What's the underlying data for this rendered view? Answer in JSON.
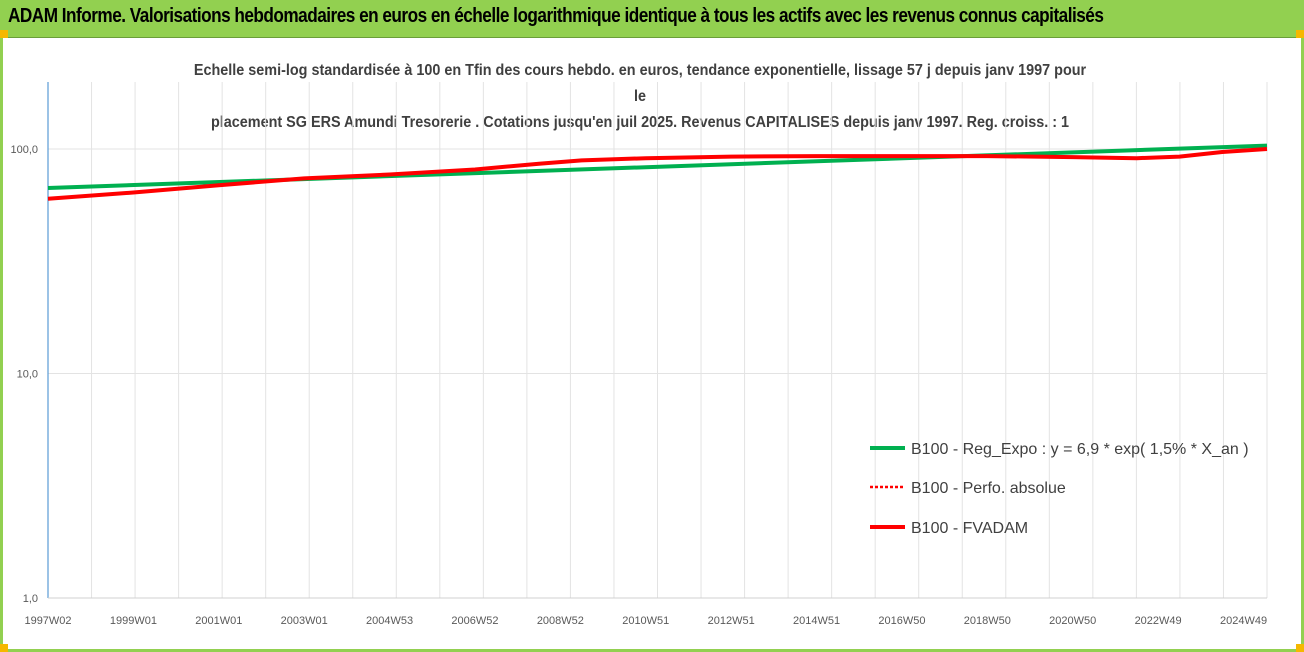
{
  "header": {
    "title": "ADAM Informe. Valorisations hebdomadaires en euros en échelle logarithmique identique à tous les actifs avec les revenus connus capitalisés"
  },
  "chart_data": {
    "type": "line",
    "title_lines": [
      "Echelle semi-log standardisée à 100 en Tfin des cours hebdo. en euros, tendance exponentielle, lissage 57 j depuis janv 1997 pour le",
      "placement SG ERS Amundi Tresorerie . Cotations jusqu'en juil 2025. Revenus CAPITALISES depuis janv 1997. Reg. croiss. : 1"
    ],
    "yscale": "log",
    "ylim": [
      1,
      100
    ],
    "y_ticks": [
      {
        "value": 1,
        "label": "1,0"
      },
      {
        "value": 10,
        "label": "10,0"
      },
      {
        "value": 100,
        "label": "100,0"
      }
    ],
    "x_range": [
      1997.0,
      2025.55
    ],
    "x_ticks": [
      {
        "x": 1997.0,
        "label": "1997W02"
      },
      {
        "x": 1999.0,
        "label": "1999W01"
      },
      {
        "x": 2001.0,
        "label": "2001W01"
      },
      {
        "x": 2003.0,
        "label": "2003W01"
      },
      {
        "x": 2005.0,
        "label": "2004W53"
      },
      {
        "x": 2007.0,
        "label": "2006W52"
      },
      {
        "x": 2009.0,
        "label": "2008W52"
      },
      {
        "x": 2011.0,
        "label": "2010W51"
      },
      {
        "x": 2013.0,
        "label": "2012W51"
      },
      {
        "x": 2015.0,
        "label": "2014W51"
      },
      {
        "x": 2017.0,
        "label": "2016W50"
      },
      {
        "x": 2019.0,
        "label": "2018W50"
      },
      {
        "x": 2021.0,
        "label": "2020W50"
      },
      {
        "x": 2023.0,
        "label": "2022W49"
      },
      {
        "x": 2025.0,
        "label": "2024W49"
      }
    ],
    "grid": true,
    "legend_position": "bottom-right",
    "series": [
      {
        "name": "B100 - Reg_Expo : y = 6,9 * exp( 1,5% *  X_an )",
        "color": "#00b050",
        "style": "solid",
        "x": [
          1997.0,
          2025.55
        ],
        "y": [
          67.0,
          103.5
        ]
      },
      {
        "name": "B100 - Perfo. absolue",
        "color": "#ff0000",
        "style": "dotted",
        "x": [
          1997.0,
          1999.0,
          2001.0,
          2003.0,
          2005.0,
          2007.0,
          2008.5,
          2009.5,
          2011.0,
          2013.0,
          2015.0,
          2017.0,
          2019.0,
          2021.0,
          2022.5,
          2023.5,
          2024.5,
          2025.55
        ],
        "y": [
          60.0,
          64.0,
          69.0,
          74.0,
          77.0,
          81.0,
          86.0,
          89.0,
          91.0,
          92.5,
          93.0,
          93.0,
          93.0,
          92.0,
          91.0,
          92.5,
          97.0,
          100.0
        ]
      },
      {
        "name": "B100 - FVADAM",
        "color": "#ff0000",
        "style": "solid",
        "x": [
          1997.0,
          1999.0,
          2001.0,
          2003.0,
          2005.0,
          2007.0,
          2008.5,
          2009.5,
          2011.0,
          2013.0,
          2015.0,
          2017.0,
          2019.0,
          2021.0,
          2022.5,
          2023.5,
          2024.5,
          2025.55
        ],
        "y": [
          60.0,
          64.0,
          69.0,
          74.0,
          77.0,
          81.0,
          86.0,
          89.0,
          91.0,
          92.5,
          93.0,
          93.0,
          93.0,
          92.0,
          91.0,
          92.5,
          97.0,
          100.0
        ]
      }
    ]
  }
}
